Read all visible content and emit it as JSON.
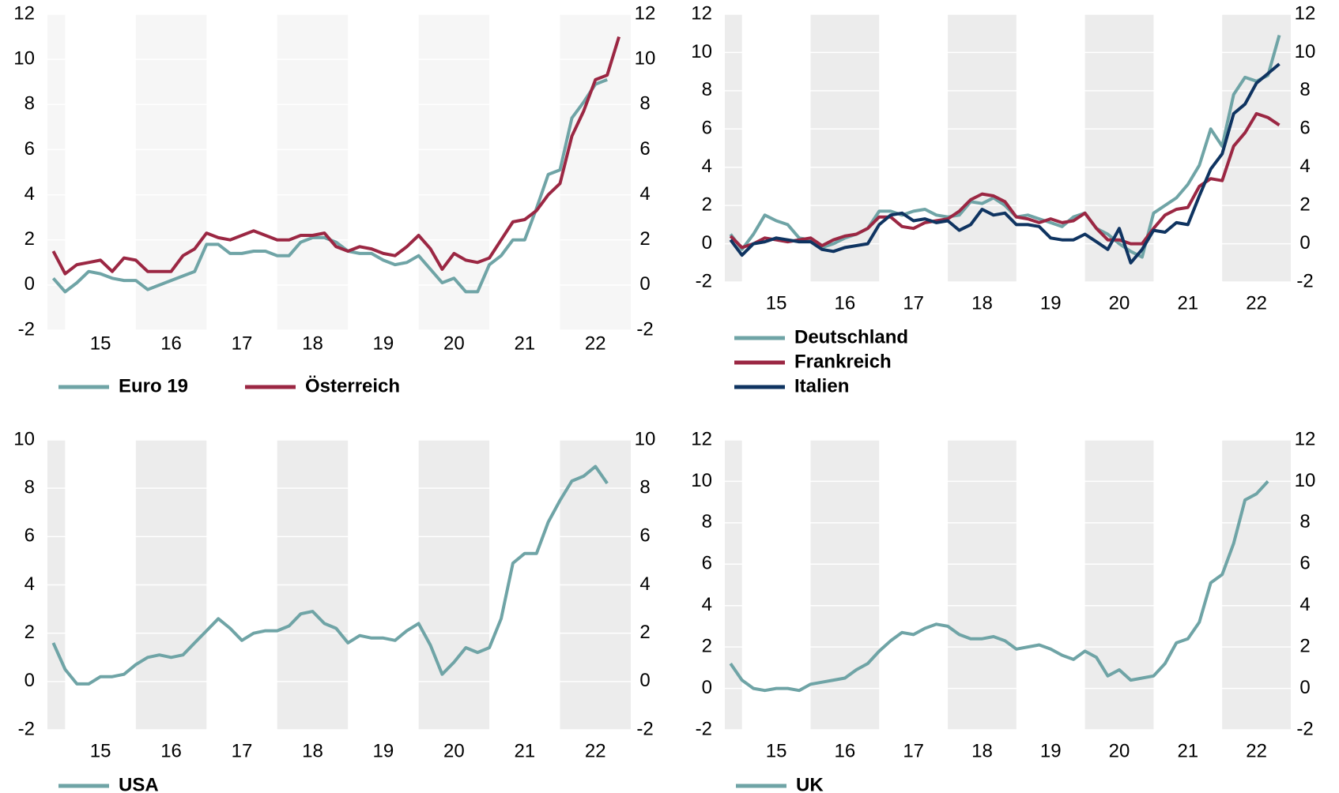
{
  "chart_data": [
    {
      "type": "line",
      "legend": "bottom",
      "grid": true,
      "band_color": "#f6f6f6",
      "xlim": [
        2014.75,
        2023
      ],
      "xticks": [
        {
          "value": 2015.5,
          "label": "15"
        },
        {
          "value": 2016.5,
          "label": "16"
        },
        {
          "value": 2017.5,
          "label": "17"
        },
        {
          "value": 2018.5,
          "label": "18"
        },
        {
          "value": 2019.5,
          "label": "19"
        },
        {
          "value": 2020.5,
          "label": "20"
        },
        {
          "value": 2021.5,
          "label": "21"
        },
        {
          "value": 2022.5,
          "label": "22"
        }
      ],
      "ylim": [
        -2,
        12
      ],
      "yticks": [
        -2,
        0,
        2,
        4,
        6,
        8,
        10,
        12
      ],
      "y2lim": [
        -2,
        12
      ],
      "y2ticks": [
        -2,
        0,
        2,
        4,
        6,
        8,
        10,
        12
      ],
      "x": [
        2014.833,
        2015,
        2015.167,
        2015.333,
        2015.5,
        2015.667,
        2015.833,
        2016,
        2016.167,
        2016.333,
        2016.5,
        2016.667,
        2016.833,
        2017,
        2017.167,
        2017.333,
        2017.5,
        2017.667,
        2017.833,
        2018,
        2018.167,
        2018.333,
        2018.5,
        2018.667,
        2018.833,
        2019,
        2019.167,
        2019.333,
        2019.5,
        2019.667,
        2019.833,
        2020,
        2020.167,
        2020.333,
        2020.5,
        2020.667,
        2020.833,
        2021,
        2021.167,
        2021.333,
        2021.5,
        2021.667,
        2021.833,
        2022,
        2022.167,
        2022.333,
        2022.5,
        2022.667,
        2022.833
      ],
      "series": [
        {
          "name": "Euro 19",
          "color": "#6fa4a6",
          "values": [
            0.3,
            -0.3,
            0.1,
            0.6,
            0.5,
            0.3,
            0.2,
            0.2,
            -0.2,
            0.0,
            0.2,
            0.4,
            0.6,
            1.8,
            1.8,
            1.4,
            1.4,
            1.5,
            1.5,
            1.3,
            1.3,
            1.9,
            2.1,
            2.1,
            1.9,
            1.5,
            1.4,
            1.4,
            1.1,
            0.9,
            1.0,
            1.3,
            0.7,
            0.1,
            0.3,
            -0.3,
            -0.3,
            0.9,
            1.3,
            2.0,
            2.0,
            3.4,
            4.9,
            5.1,
            7.4,
            8.1,
            8.9,
            9.1,
            null
          ]
        },
        {
          "name": "Österreich",
          "color": "#9b2743",
          "values": [
            1.5,
            0.5,
            0.9,
            1.0,
            1.1,
            0.6,
            1.2,
            1.1,
            0.6,
            0.6,
            0.6,
            1.3,
            1.6,
            2.3,
            2.1,
            2.0,
            2.2,
            2.4,
            2.2,
            2.0,
            2.0,
            2.2,
            2.2,
            2.3,
            1.7,
            1.5,
            1.7,
            1.6,
            1.4,
            1.3,
            1.7,
            2.2,
            1.6,
            0.7,
            1.4,
            1.1,
            1.0,
            1.2,
            2.0,
            2.8,
            2.9,
            3.3,
            4.0,
            4.5,
            6.6,
            7.7,
            9.1,
            9.3,
            11.0
          ]
        }
      ]
    },
    {
      "type": "line",
      "legend": "bottom",
      "grid": true,
      "band_color": "#ececec",
      "xlim": [
        2014.75,
        2023
      ],
      "xticks": [
        {
          "value": 2015.5,
          "label": "15"
        },
        {
          "value": 2016.5,
          "label": "16"
        },
        {
          "value": 2017.5,
          "label": "17"
        },
        {
          "value": 2018.5,
          "label": "18"
        },
        {
          "value": 2019.5,
          "label": "19"
        },
        {
          "value": 2020.5,
          "label": "20"
        },
        {
          "value": 2021.5,
          "label": "21"
        },
        {
          "value": 2022.5,
          "label": "22"
        }
      ],
      "ylim": [
        -2,
        12
      ],
      "yticks": [
        -2,
        0,
        2,
        4,
        6,
        8,
        10,
        12
      ],
      "y2lim": [
        -2,
        12
      ],
      "y2ticks": [
        -2,
        0,
        2,
        4,
        6,
        8,
        10,
        12
      ],
      "x": [
        2014.833,
        2015,
        2015.167,
        2015.333,
        2015.5,
        2015.667,
        2015.833,
        2016,
        2016.167,
        2016.333,
        2016.5,
        2016.667,
        2016.833,
        2017,
        2017.167,
        2017.333,
        2017.5,
        2017.667,
        2017.833,
        2018,
        2018.167,
        2018.333,
        2018.5,
        2018.667,
        2018.833,
        2019,
        2019.167,
        2019.333,
        2019.5,
        2019.667,
        2019.833,
        2020,
        2020.167,
        2020.333,
        2020.5,
        2020.667,
        2020.833,
        2021,
        2021.167,
        2021.333,
        2021.5,
        2021.667,
        2021.833,
        2022,
        2022.167,
        2022.333,
        2022.5,
        2022.667,
        2022.833
      ],
      "series": [
        {
          "name": "Deutschland",
          "color": "#6fa4a6",
          "values": [
            0.5,
            -0.3,
            0.5,
            1.5,
            1.2,
            1.0,
            0.3,
            0.2,
            -0.2,
            0.0,
            0.3,
            0.5,
            0.8,
            1.7,
            1.7,
            1.5,
            1.7,
            1.8,
            1.5,
            1.4,
            1.5,
            2.2,
            2.1,
            2.4,
            2.0,
            1.4,
            1.5,
            1.3,
            1.1,
            0.9,
            1.4,
            1.6,
            0.8,
            0.5,
            0.0,
            -0.4,
            -0.7,
            1.6,
            2.0,
            2.4,
            3.1,
            4.1,
            6.0,
            5.1,
            7.8,
            8.7,
            8.5,
            8.8,
            10.9
          ]
        },
        {
          "name": "Frankreich",
          "color": "#9b2743",
          "values": [
            0.4,
            -0.2,
            0.0,
            0.3,
            0.2,
            0.1,
            0.2,
            0.3,
            -0.1,
            0.2,
            0.4,
            0.5,
            0.8,
            1.4,
            1.4,
            0.9,
            0.8,
            1.1,
            1.2,
            1.3,
            1.7,
            2.3,
            2.6,
            2.5,
            2.2,
            1.4,
            1.3,
            1.1,
            1.3,
            1.1,
            1.2,
            1.6,
            0.8,
            0.2,
            0.2,
            0.0,
            0.0,
            0.8,
            1.5,
            1.8,
            1.9,
            3.0,
            3.4,
            3.3,
            5.1,
            5.8,
            6.8,
            6.6,
            6.2
          ]
        },
        {
          "name": "Italien",
          "color": "#0f3461",
          "values": [
            0.2,
            -0.6,
            0.0,
            0.1,
            0.3,
            0.2,
            0.1,
            0.1,
            -0.3,
            -0.4,
            -0.2,
            -0.1,
            0.0,
            1.0,
            1.5,
            1.6,
            1.2,
            1.3,
            1.1,
            1.2,
            0.7,
            1.0,
            1.8,
            1.5,
            1.6,
            1.0,
            1.0,
            0.9,
            0.3,
            0.2,
            0.2,
            0.5,
            0.1,
            -0.3,
            0.8,
            -1.0,
            -0.3,
            0.7,
            0.6,
            1.1,
            1.0,
            2.5,
            3.9,
            4.7,
            6.8,
            7.3,
            8.4,
            8.9,
            9.4
          ]
        }
      ]
    },
    {
      "type": "line",
      "legend": "bottom",
      "grid": true,
      "band_color": "#ececec",
      "xlim": [
        2014.75,
        2023
      ],
      "xticks": [
        {
          "value": 2015.5,
          "label": "15"
        },
        {
          "value": 2016.5,
          "label": "16"
        },
        {
          "value": 2017.5,
          "label": "17"
        },
        {
          "value": 2018.5,
          "label": "18"
        },
        {
          "value": 2019.5,
          "label": "19"
        },
        {
          "value": 2020.5,
          "label": "20"
        },
        {
          "value": 2021.5,
          "label": "21"
        },
        {
          "value": 2022.5,
          "label": "22"
        }
      ],
      "ylim": [
        -2,
        10
      ],
      "yticks": [
        -2,
        0,
        2,
        4,
        6,
        8,
        10
      ],
      "y2lim": [
        -2,
        10
      ],
      "y2ticks": [
        -2,
        0,
        2,
        4,
        6,
        8,
        10
      ],
      "x": [
        2014.833,
        2015,
        2015.167,
        2015.333,
        2015.5,
        2015.667,
        2015.833,
        2016,
        2016.167,
        2016.333,
        2016.5,
        2016.667,
        2016.833,
        2017,
        2017.167,
        2017.333,
        2017.5,
        2017.667,
        2017.833,
        2018,
        2018.167,
        2018.333,
        2018.5,
        2018.667,
        2018.833,
        2019,
        2019.167,
        2019.333,
        2019.5,
        2019.667,
        2019.833,
        2020,
        2020.167,
        2020.333,
        2020.5,
        2020.667,
        2020.833,
        2021,
        2021.167,
        2021.333,
        2021.5,
        2021.667,
        2021.833,
        2022,
        2022.167,
        2022.333,
        2022.5,
        2022.667,
        2022.833
      ],
      "series": [
        {
          "name": "USA",
          "color": "#6fa4a6",
          "values": [
            1.6,
            0.5,
            -0.1,
            -0.1,
            0.2,
            0.2,
            0.3,
            0.7,
            1.0,
            1.1,
            1.0,
            1.1,
            1.6,
            2.1,
            2.6,
            2.2,
            1.7,
            2.0,
            2.1,
            2.1,
            2.3,
            2.8,
            2.9,
            2.4,
            2.2,
            1.6,
            1.9,
            1.8,
            1.8,
            1.7,
            2.1,
            2.4,
            1.5,
            0.3,
            0.8,
            1.4,
            1.2,
            1.4,
            2.6,
            4.9,
            5.3,
            5.3,
            6.6,
            7.5,
            8.3,
            8.5,
            8.9,
            8.2,
            null
          ]
        }
      ]
    },
    {
      "type": "line",
      "legend": "bottom",
      "grid": true,
      "band_color": "#ececec",
      "xlim": [
        2014.75,
        2023
      ],
      "xticks": [
        {
          "value": 2015.5,
          "label": "15"
        },
        {
          "value": 2016.5,
          "label": "16"
        },
        {
          "value": 2017.5,
          "label": "17"
        },
        {
          "value": 2018.5,
          "label": "18"
        },
        {
          "value": 2019.5,
          "label": "19"
        },
        {
          "value": 2020.5,
          "label": "20"
        },
        {
          "value": 2021.5,
          "label": "21"
        },
        {
          "value": 2022.5,
          "label": "22"
        }
      ],
      "ylim": [
        -2,
        12
      ],
      "yticks": [
        -2,
        0,
        2,
        4,
        6,
        8,
        10,
        12
      ],
      "y2lim": [
        -2,
        12
      ],
      "y2ticks": [
        -2,
        0,
        2,
        4,
        6,
        8,
        10,
        12
      ],
      "x": [
        2014.833,
        2015,
        2015.167,
        2015.333,
        2015.5,
        2015.667,
        2015.833,
        2016,
        2016.167,
        2016.333,
        2016.5,
        2016.667,
        2016.833,
        2017,
        2017.167,
        2017.333,
        2017.5,
        2017.667,
        2017.833,
        2018,
        2018.167,
        2018.333,
        2018.5,
        2018.667,
        2018.833,
        2019,
        2019.167,
        2019.333,
        2019.5,
        2019.667,
        2019.833,
        2020,
        2020.167,
        2020.333,
        2020.5,
        2020.667,
        2020.833,
        2021,
        2021.167,
        2021.333,
        2021.5,
        2021.667,
        2021.833,
        2022,
        2022.167,
        2022.333,
        2022.5,
        2022.667,
        2022.833
      ],
      "series": [
        {
          "name": "UK",
          "color": "#6fa4a6",
          "values": [
            1.2,
            0.4,
            0.0,
            -0.1,
            0.0,
            0.0,
            -0.1,
            0.2,
            0.3,
            0.4,
            0.5,
            0.9,
            1.2,
            1.8,
            2.3,
            2.7,
            2.6,
            2.9,
            3.1,
            3.0,
            2.6,
            2.4,
            2.4,
            2.5,
            2.3,
            1.9,
            2.0,
            2.1,
            1.9,
            1.6,
            1.4,
            1.8,
            1.5,
            0.6,
            0.9,
            0.4,
            0.5,
            0.6,
            1.2,
            2.2,
            2.4,
            3.2,
            5.1,
            5.5,
            7.0,
            9.1,
            9.4,
            10.0,
            null
          ]
        }
      ]
    }
  ]
}
